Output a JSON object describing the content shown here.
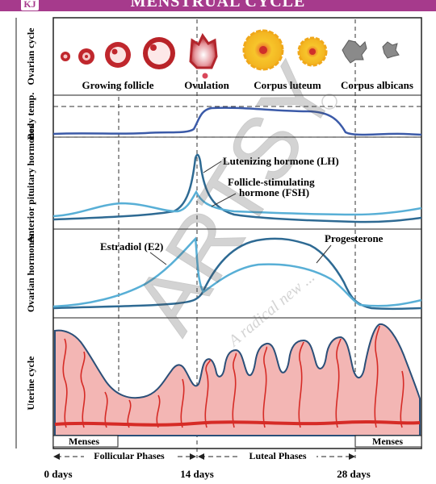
{
  "header": {
    "title": "MENSTRUAL CYCLE",
    "logo_text": "KJ"
  },
  "rows": {
    "ovarian_cycle": "Ovarian cycle",
    "body_temp": "Body temp.",
    "anterior_pituitary": "Anterior pituitary hormones",
    "ovarian_hormones": "Ovarian hormones",
    "uterine_cycle": "Uterine cycle"
  },
  "ovarian_labels": {
    "growing_follicle": "Growing follicle",
    "ovulation": "Ovulation",
    "corpus_luteum": "Corpus luteum",
    "corpus_albicans": "Corpus albicans"
  },
  "hormone_labels": {
    "lh": "Lutenizing hormone (LH)",
    "fsh_line1": "Follicle-stimulating",
    "fsh_line2": "hormone (FSH)",
    "estradiol": "Estradiol (E2)",
    "progesterone": "Progesterone"
  },
  "phases": {
    "menses_left": "Menses",
    "menses_right": "Menses",
    "follicular": "Follicular Phases",
    "luteal": "Luteal Phases"
  },
  "days": {
    "day0": "0 days",
    "day14": "14 days",
    "day28": "28 days"
  },
  "watermark": {
    "main": "ARTSY",
    "tagline": "A radical new ..."
  },
  "colors": {
    "header": "#a63a8c",
    "dark_curve": "#2e6a93",
    "light_curve": "#58afd6",
    "temp_curve": "#3b5aa8",
    "uterine_fill": "#f3b6b4",
    "uterine_edge": "#2b4f78",
    "vessel": "#d62b26",
    "follicle": "#c0272d",
    "luteum": "#f7c52b"
  }
}
